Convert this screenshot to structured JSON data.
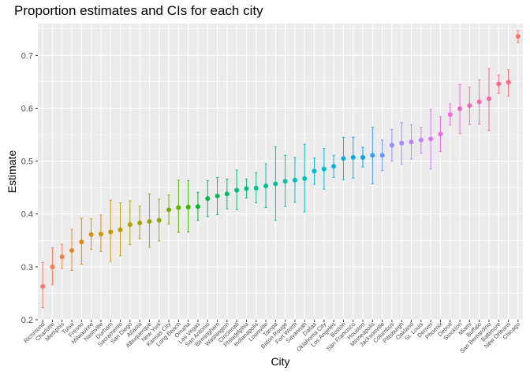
{
  "chart_data": {
    "type": "scatter",
    "title": "Proportion estimates and CIs for each city",
    "xlabel": "City",
    "ylabel": "Estimate",
    "ylim": [
      0.2,
      0.76
    ],
    "yticks": [
      0.2,
      0.3,
      0.4,
      0.5,
      0.6,
      0.7
    ],
    "ytick_labels": [
      "0.2",
      "0.3",
      "0.4",
      "0.5",
      "0.6",
      "0.7"
    ],
    "grid": true,
    "panel_background": "#ebebeb",
    "grid_color": "#ffffff",
    "points": [
      {
        "city": "Richmond",
        "estimate": 0.263,
        "lower": 0.223,
        "upper": 0.308,
        "color": "#f8766d"
      },
      {
        "city": "Charlotte",
        "estimate": 0.3,
        "lower": 0.266,
        "upper": 0.336,
        "color": "#f47b5a"
      },
      {
        "city": "Memphis",
        "estimate": 0.319,
        "lower": 0.297,
        "upper": 0.343,
        "color": "#ef7f4b"
      },
      {
        "city": "Tulsa",
        "estimate": 0.331,
        "lower": 0.293,
        "upper": 0.371,
        "color": "#e9842c"
      },
      {
        "city": "Fresno",
        "estimate": 0.347,
        "lower": 0.305,
        "upper": 0.392,
        "color": "#e38900"
      },
      {
        "city": "Milwaukee",
        "estimate": 0.361,
        "lower": 0.333,
        "upper": 0.391,
        "color": "#dc8d00"
      },
      {
        "city": "Nashville",
        "estimate": 0.362,
        "lower": 0.329,
        "upper": 0.398,
        "color": "#d39200"
      },
      {
        "city": "Durham",
        "estimate": 0.366,
        "lower": 0.31,
        "upper": 0.426,
        "color": "#ca9600"
      },
      {
        "city": "Sacramento",
        "estimate": 0.37,
        "lower": 0.321,
        "upper": 0.421,
        "color": "#c09b00"
      },
      {
        "city": "San Diego",
        "estimate": 0.38,
        "lower": 0.342,
        "upper": 0.425,
        "color": "#b59f00"
      },
      {
        "city": "Atlanta",
        "estimate": 0.383,
        "lower": 0.353,
        "upper": 0.415,
        "color": "#a8a300"
      },
      {
        "city": "Albuquerque",
        "estimate": 0.386,
        "lower": 0.337,
        "upper": 0.438,
        "color": "#9aa700"
      },
      {
        "city": "New York",
        "estimate": 0.388,
        "lower": 0.349,
        "upper": 0.428,
        "color": "#8aab00"
      },
      {
        "city": "Kansas City",
        "estimate": 0.408,
        "lower": 0.381,
        "upper": 0.436,
        "color": "#77af00"
      },
      {
        "city": "Long Beach",
        "estimate": 0.412,
        "lower": 0.365,
        "upper": 0.464,
        "color": "#5fb200"
      },
      {
        "city": "Omaha",
        "estimate": 0.413,
        "lower": 0.366,
        "upper": 0.463,
        "color": "#39b600"
      },
      {
        "city": "Las Vegas",
        "estimate": 0.414,
        "lower": 0.388,
        "upper": 0.441,
        "color": "#00b82b"
      },
      {
        "city": "San Antonio",
        "estimate": 0.429,
        "lower": 0.395,
        "upper": 0.463,
        "color": "#00ba42"
      },
      {
        "city": "Birmingham",
        "estimate": 0.434,
        "lower": 0.399,
        "upper": 0.469,
        "color": "#00bb53"
      },
      {
        "city": "Washington",
        "estimate": 0.438,
        "lower": 0.41,
        "upper": 0.466,
        "color": "#00bd63"
      },
      {
        "city": "Cincinnati",
        "estimate": 0.445,
        "lower": 0.408,
        "upper": 0.483,
        "color": "#00be71"
      },
      {
        "city": "Philadelphia",
        "estimate": 0.448,
        "lower": 0.43,
        "upper": 0.466,
        "color": "#00bf7f"
      },
      {
        "city": "Indianapolis",
        "estimate": 0.449,
        "lower": 0.421,
        "upper": 0.478,
        "color": "#00c08b"
      },
      {
        "city": "Louisville",
        "estimate": 0.453,
        "lower": 0.412,
        "upper": 0.495,
        "color": "#00c097"
      },
      {
        "city": "Tampa",
        "estimate": 0.457,
        "lower": 0.388,
        "upper": 0.527,
        "color": "#00c0a3"
      },
      {
        "city": "Baton Rouge",
        "estimate": 0.462,
        "lower": 0.414,
        "upper": 0.511,
        "color": "#00c0af"
      },
      {
        "city": "Fort Worth",
        "estimate": 0.464,
        "lower": 0.422,
        "upper": 0.507,
        "color": "#00bfba"
      },
      {
        "city": "Savannah",
        "estimate": 0.467,
        "lower": 0.404,
        "upper": 0.532,
        "color": "#00bdc4"
      },
      {
        "city": "Dallas",
        "estimate": 0.481,
        "lower": 0.456,
        "upper": 0.506,
        "color": "#00bbce"
      },
      {
        "city": "Oklahoma City",
        "estimate": 0.485,
        "lower": 0.447,
        "upper": 0.524,
        "color": "#00b8d8"
      },
      {
        "city": "Los Angeles",
        "estimate": 0.49,
        "lower": 0.469,
        "upper": 0.511,
        "color": "#00b5e1"
      },
      {
        "city": "Boston",
        "estimate": 0.505,
        "lower": 0.465,
        "upper": 0.545,
        "color": "#00b0ea"
      },
      {
        "city": "San Francisco",
        "estimate": 0.507,
        "lower": 0.468,
        "upper": 0.545,
        "color": "#00abf2"
      },
      {
        "city": "Houston",
        "estimate": 0.507,
        "lower": 0.489,
        "upper": 0.526,
        "color": "#00a5f9"
      },
      {
        "city": "Minneapolis",
        "estimate": 0.511,
        "lower": 0.457,
        "upper": 0.564,
        "color": "#339efc"
      },
      {
        "city": "Jacksonville",
        "estimate": 0.511,
        "lower": 0.482,
        "upper": 0.54,
        "color": "#6697ff"
      },
      {
        "city": "Columbus",
        "estimate": 0.53,
        "lower": 0.5,
        "upper": 0.56,
        "color": "#8a90ff"
      },
      {
        "city": "Pittsburgh",
        "estimate": 0.534,
        "lower": 0.494,
        "upper": 0.573,
        "color": "#a488ff"
      },
      {
        "city": "Oakland",
        "estimate": 0.536,
        "lower": 0.504,
        "upper": 0.569,
        "color": "#b983ff"
      },
      {
        "city": "St. Louis",
        "estimate": 0.54,
        "lower": 0.515,
        "upper": 0.564,
        "color": "#c97cf9"
      },
      {
        "city": "Denver",
        "estimate": 0.542,
        "lower": 0.485,
        "upper": 0.598,
        "color": "#d874f0"
      },
      {
        "city": "Phoenix",
        "estimate": 0.551,
        "lower": 0.518,
        "upper": 0.584,
        "color": "#e56de5"
      },
      {
        "city": "Detroit",
        "estimate": 0.588,
        "lower": 0.568,
        "upper": 0.608,
        "color": "#ef67d9"
      },
      {
        "city": "Stockton",
        "estimate": 0.599,
        "lower": 0.552,
        "upper": 0.645,
        "color": "#f763cb"
      },
      {
        "city": "Miami",
        "estimate": 0.605,
        "lower": 0.569,
        "upper": 0.64,
        "color": "#fc61bd"
      },
      {
        "city": "Buffalo",
        "estimate": 0.612,
        "lower": 0.57,
        "upper": 0.654,
        "color": "#ff61ae"
      },
      {
        "city": "San Bernardino",
        "estimate": 0.618,
        "lower": 0.558,
        "upper": 0.675,
        "color": "#ff639e"
      },
      {
        "city": "Baltimore",
        "estimate": 0.646,
        "lower": 0.628,
        "upper": 0.663,
        "color": "#ff668d"
      },
      {
        "city": "New Orleans",
        "estimate": 0.649,
        "lower": 0.623,
        "upper": 0.673,
        "color": "#fd6a7c"
      },
      {
        "city": "Chicago",
        "estimate": 0.736,
        "lower": 0.724,
        "upper": 0.747,
        "color": "#fb706d"
      }
    ]
  }
}
